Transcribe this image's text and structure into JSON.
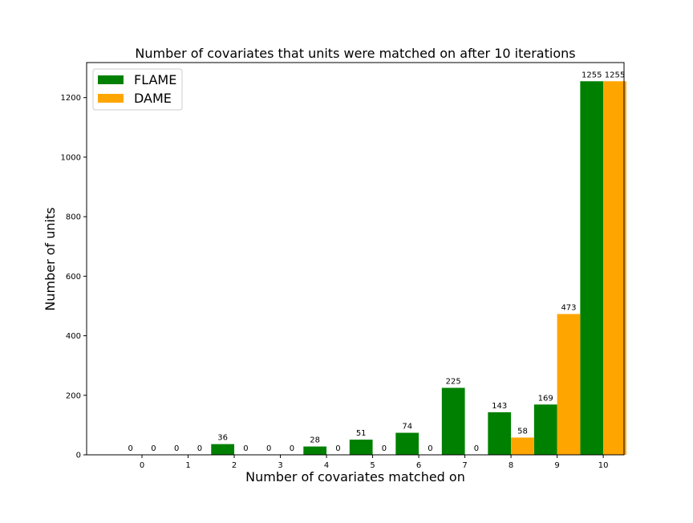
{
  "chart_data": {
    "type": "bar",
    "title": "Number of covariates that units were matched on after 10 iterations",
    "xlabel": "Number of covariates matched on",
    "ylabel": "Number of units",
    "categories": [
      "0",
      "1",
      "2",
      "3",
      "4",
      "5",
      "6",
      "7",
      "8",
      "9",
      "10"
    ],
    "series": [
      {
        "name": "FLAME",
        "color": "#008000",
        "values": [
          0,
          0,
          36,
          0,
          28,
          51,
          74,
          225,
          143,
          169,
          1255
        ]
      },
      {
        "name": "DAME",
        "color": "#FFA500",
        "values": [
          0,
          0,
          0,
          0,
          0,
          0,
          0,
          0,
          58,
          473,
          1255
        ]
      }
    ],
    "yticks": [
      0,
      200,
      400,
      600,
      800,
      1000,
      1200
    ],
    "ylim": [
      0,
      1317.75
    ],
    "legend_position": "upper-left",
    "grid": false
  }
}
